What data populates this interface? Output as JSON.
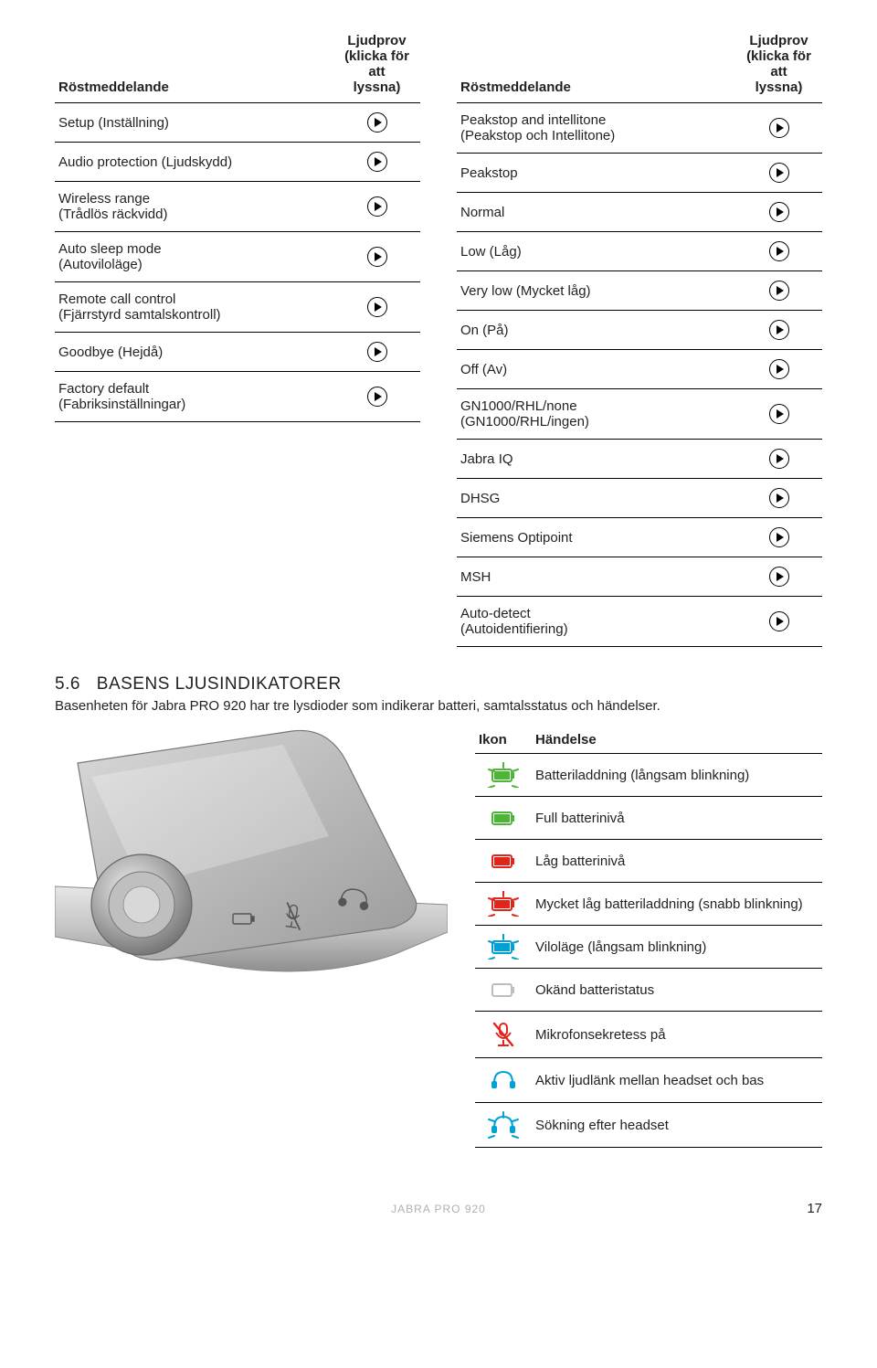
{
  "table_left": {
    "col1": "Röstmeddelande",
    "col2_l1": "Ljudprov",
    "col2_l2": "(klicka för att",
    "col2_l3": "lyssna)",
    "rows": [
      "Setup (Inställning)",
      "Audio protection (Ljudskydd)",
      "Wireless range\n(Trådlös räckvidd)",
      "Auto sleep mode\n(Autoviloläge)",
      "Remote call control\n(Fjärrstyrd samtalskontroll)",
      "Goodbye (Hejdå)",
      "Factory default\n(Fabriksinställningar)"
    ]
  },
  "table_right": {
    "col1": "Röstmeddelande",
    "col2_l1": "Ljudprov",
    "col2_l2": "(klicka för att",
    "col2_l3": "lyssna)",
    "rows": [
      "Peakstop and intellitone\n(Peakstop och Intellitone)",
      "Peakstop",
      "Normal",
      "Low (Låg)",
      "Very low (Mycket låg)",
      "On (På)",
      "Off (Av)",
      "GN1000/RHL/none\n(GN1000/RHL/ingen)",
      "Jabra IQ",
      "DHSG",
      "Siemens Optipoint",
      "MSH",
      "Auto-detect\n(Autoidentifiering)"
    ]
  },
  "section": {
    "num": "5.6",
    "title": "BASENS LJUSINDIKATORER",
    "lead": "Basenheten för Jabra PRO 920 har tre lysdioder som indikerar batteri, samtalsstatus och händelser."
  },
  "events": {
    "col1": "Ikon",
    "col2": "Händelse",
    "rows": [
      {
        "icon": "bat-green-blink",
        "label": "Batteriladdning (långsam blinkning)"
      },
      {
        "icon": "bat-green",
        "label": "Full batterinivå"
      },
      {
        "icon": "bat-red",
        "label": "Låg batterinivå"
      },
      {
        "icon": "bat-red-blink",
        "label": "Mycket låg batteriladdning (snabb blinkning)"
      },
      {
        "icon": "bat-blue-blink",
        "label": "Viloläge (långsam blinkning)"
      },
      {
        "icon": "bat-gray",
        "label": "Okänd batteristatus"
      },
      {
        "icon": "mic-mute",
        "label": "Mikrofonsekretess på"
      },
      {
        "icon": "headset-link",
        "label": "Aktiv ljudlänk mellan headset och bas"
      },
      {
        "icon": "headset-search",
        "label": "Sökning efter headset"
      }
    ]
  },
  "colors": {
    "green": "#4db638",
    "red": "#e1251b",
    "blue": "#00a1d6",
    "gray": "#bdbdbd",
    "darkgray": "#6d6d6d"
  },
  "footer": {
    "product": "JABRA PRO 920",
    "page": "17"
  }
}
